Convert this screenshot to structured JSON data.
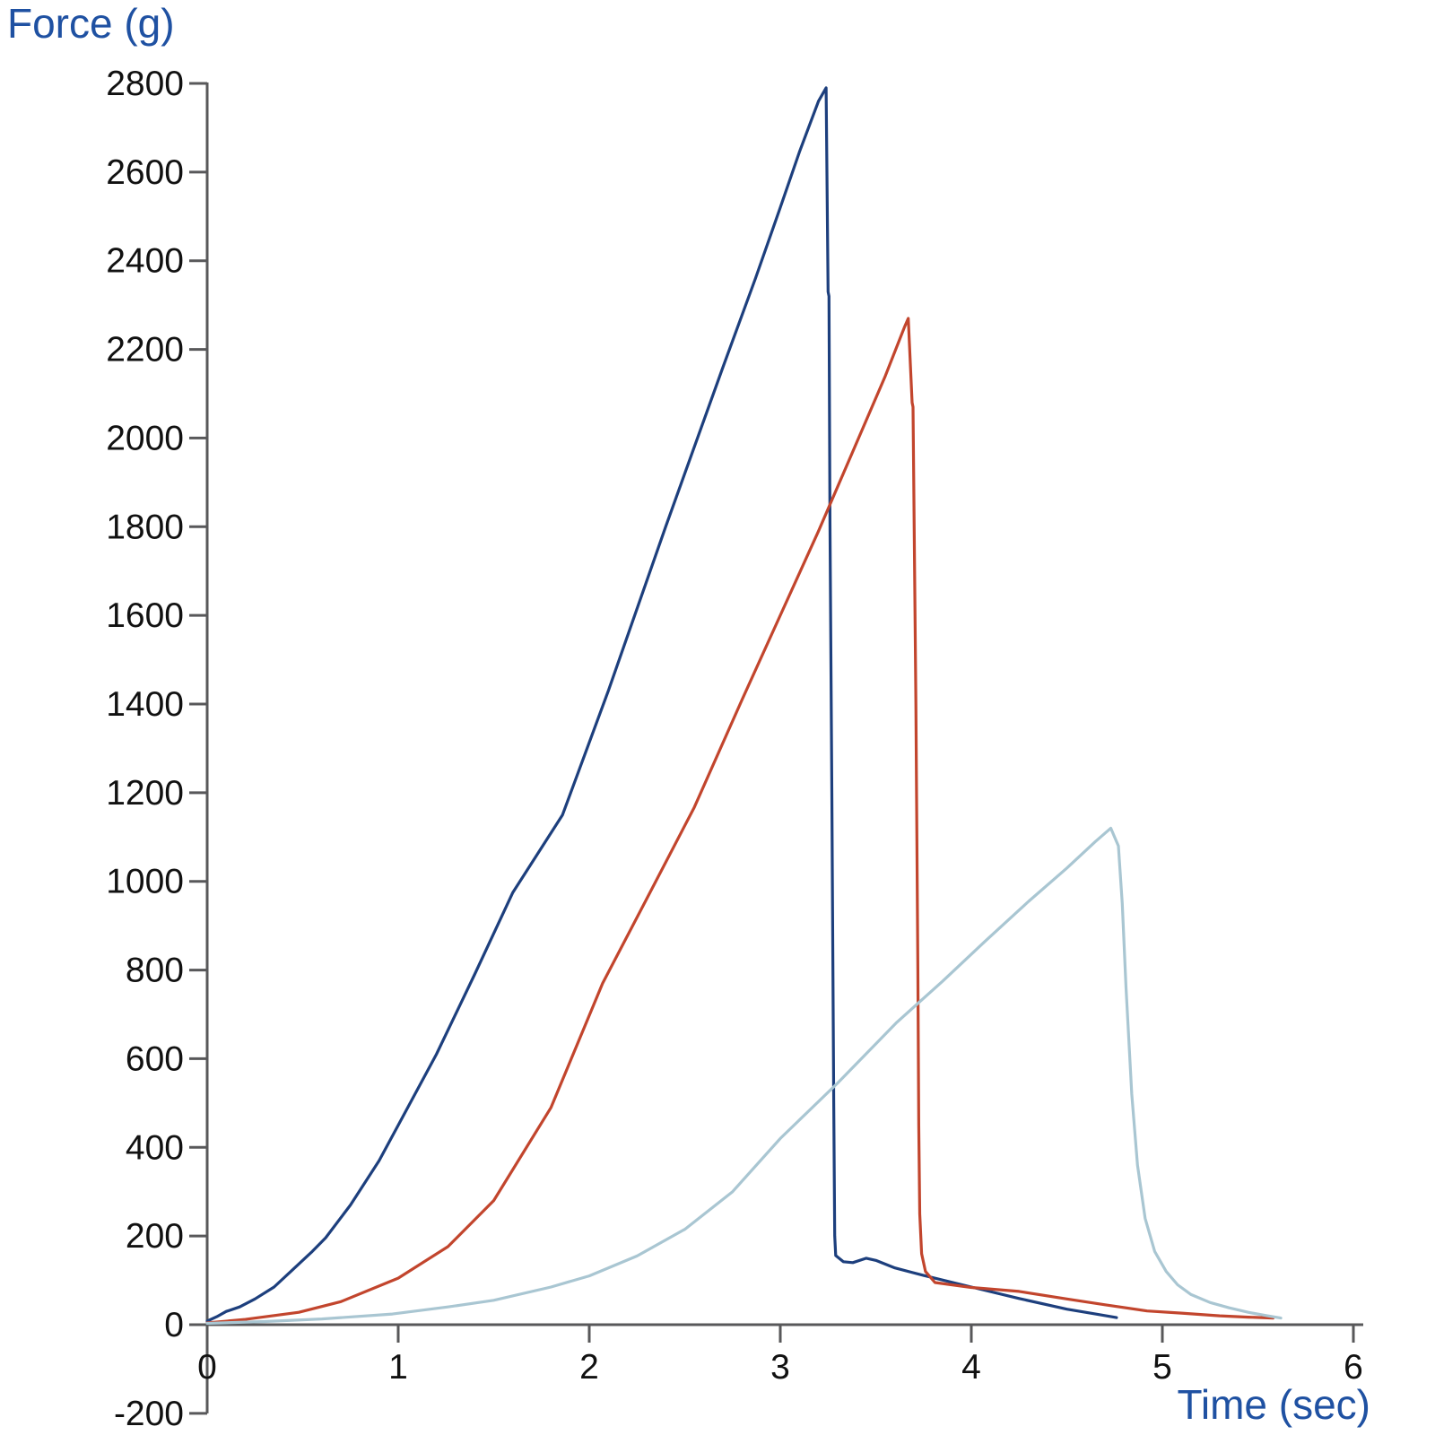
{
  "chart_data": {
    "type": "line",
    "title": "",
    "xlabel": "Time (sec)",
    "ylabel": "Force (g)",
    "xlim": [
      0,
      6
    ],
    "ylim": [
      -200,
      2800
    ],
    "x_ticks": [
      0,
      1,
      2,
      3,
      4,
      5,
      6
    ],
    "y_ticks": [
      -200,
      0,
      200,
      400,
      600,
      800,
      1000,
      1200,
      1400,
      1600,
      1800,
      2000,
      2200,
      2400,
      2600,
      2800
    ],
    "grid": false,
    "legend": "none",
    "axis_color": "#58585a",
    "label_color": "#1f51a2",
    "tick_label_color": "#111111",
    "series": [
      {
        "name": "dark-blue",
        "color": "#1d3f7d",
        "peak": {
          "time_sec": 3.24,
          "force_g": 2790
        },
        "points": [
          [
            0,
            8
          ],
          [
            0.05,
            18
          ],
          [
            0.1,
            30
          ],
          [
            0.17,
            40
          ],
          [
            0.25,
            58
          ],
          [
            0.35,
            85
          ],
          [
            0.45,
            125
          ],
          [
            0.55,
            165
          ],
          [
            0.62,
            196
          ],
          [
            0.75,
            270
          ],
          [
            0.9,
            370
          ],
          [
            1.0,
            450
          ],
          [
            1.2,
            610
          ],
          [
            1.4,
            790
          ],
          [
            1.6,
            975
          ],
          [
            1.86,
            1150
          ],
          [
            2.1,
            1430
          ],
          [
            2.4,
            1800
          ],
          [
            2.7,
            2160
          ],
          [
            2.87,
            2360
          ],
          [
            3.0,
            2520
          ],
          [
            3.1,
            2645
          ],
          [
            3.2,
            2760
          ],
          [
            3.24,
            2790
          ],
          [
            3.25,
            2330
          ],
          [
            3.255,
            2320
          ],
          [
            3.26,
            1810
          ],
          [
            3.27,
            1200
          ],
          [
            3.28,
            500
          ],
          [
            3.285,
            200
          ],
          [
            3.29,
            156
          ],
          [
            3.33,
            142
          ],
          [
            3.38,
            140
          ],
          [
            3.45,
            150
          ],
          [
            3.5,
            145
          ],
          [
            3.6,
            128
          ],
          [
            3.75,
            111
          ],
          [
            4.0,
            85
          ],
          [
            4.25,
            59
          ],
          [
            4.5,
            35
          ],
          [
            4.65,
            24
          ],
          [
            4.76,
            16
          ]
        ]
      },
      {
        "name": "red",
        "color": "#c2452d",
        "peak": {
          "time_sec": 3.67,
          "force_g": 2270
        },
        "points": [
          [
            0,
            4
          ],
          [
            0.2,
            12
          ],
          [
            0.48,
            28
          ],
          [
            0.7,
            52
          ],
          [
            1.0,
            105
          ],
          [
            1.26,
            176
          ],
          [
            1.5,
            280
          ],
          [
            1.8,
            490
          ],
          [
            2.07,
            770
          ],
          [
            2.3,
            960
          ],
          [
            2.55,
            1167
          ],
          [
            2.8,
            1410
          ],
          [
            3.0,
            1600
          ],
          [
            3.2,
            1790
          ],
          [
            3.4,
            1990
          ],
          [
            3.55,
            2140
          ],
          [
            3.65,
            2250
          ],
          [
            3.67,
            2270
          ],
          [
            3.69,
            2080
          ],
          [
            3.695,
            2070
          ],
          [
            3.71,
            1400
          ],
          [
            3.72,
            800
          ],
          [
            3.725,
            450
          ],
          [
            3.73,
            250
          ],
          [
            3.74,
            160
          ],
          [
            3.76,
            120
          ],
          [
            3.81,
            95
          ],
          [
            4.0,
            84
          ],
          [
            4.25,
            75
          ],
          [
            4.5,
            58
          ],
          [
            4.7,
            45
          ],
          [
            4.92,
            31
          ],
          [
            5.1,
            26
          ],
          [
            5.3,
            20
          ],
          [
            5.45,
            17
          ],
          [
            5.58,
            15
          ]
        ]
      },
      {
        "name": "light-blue",
        "color": "#a9c6d2",
        "peak": {
          "time_sec": 4.73,
          "force_g": 1120
        },
        "points": [
          [
            0,
            3
          ],
          [
            0.3,
            7
          ],
          [
            0.6,
            13
          ],
          [
            0.97,
            24
          ],
          [
            1.26,
            40
          ],
          [
            1.5,
            55
          ],
          [
            1.8,
            85
          ],
          [
            2.0,
            110
          ],
          [
            2.25,
            155
          ],
          [
            2.5,
            215
          ],
          [
            2.75,
            300
          ],
          [
            3.0,
            420
          ],
          [
            3.3,
            545
          ],
          [
            3.61,
            682
          ],
          [
            3.85,
            775
          ],
          [
            4.07,
            864
          ],
          [
            4.3,
            955
          ],
          [
            4.5,
            1030
          ],
          [
            4.65,
            1090
          ],
          [
            4.73,
            1120
          ],
          [
            4.77,
            1080
          ],
          [
            4.79,
            950
          ],
          [
            4.81,
            760
          ],
          [
            4.84,
            520
          ],
          [
            4.87,
            360
          ],
          [
            4.91,
            240
          ],
          [
            4.96,
            165
          ],
          [
            5.02,
            120
          ],
          [
            5.08,
            90
          ],
          [
            5.15,
            68
          ],
          [
            5.25,
            50
          ],
          [
            5.35,
            38
          ],
          [
            5.45,
            28
          ],
          [
            5.55,
            20
          ],
          [
            5.62,
            15
          ]
        ]
      }
    ]
  }
}
